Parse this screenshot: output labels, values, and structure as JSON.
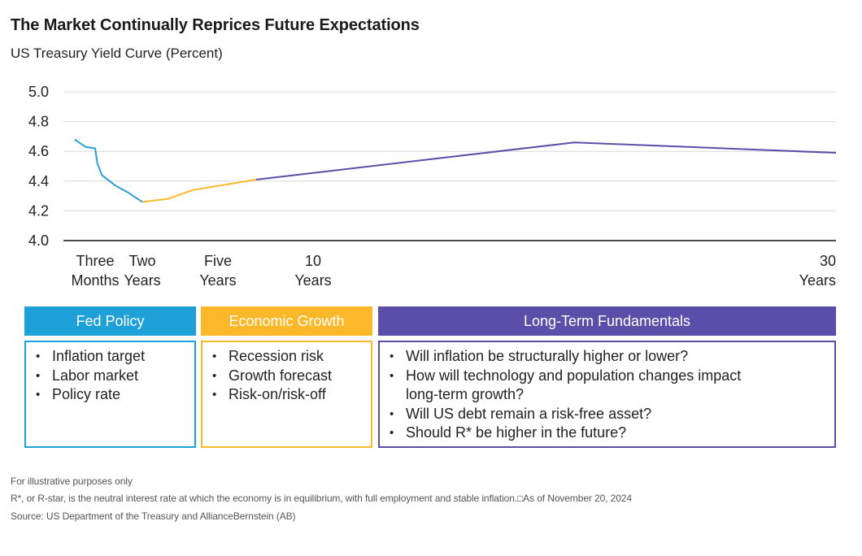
{
  "title": "The Market Continually Reprices Future Expectations",
  "subtitle": "US Treasury Yield Curve (Percent)",
  "chart_data": {
    "type": "line",
    "title": "The Market Continually Reprices Future Expectations",
    "subtitle": "US Treasury Yield Curve (Percent)",
    "ylim": [
      4.0,
      5.0
    ],
    "yticks": [
      "5.0",
      "4.8",
      "4.6",
      "4.4",
      "4.2",
      "4.0"
    ],
    "xlim": [
      0,
      30
    ],
    "x_ticks": [
      {
        "value": 0.25,
        "lines": [
          "Three",
          "Months"
        ]
      },
      {
        "value": 2,
        "lines": [
          "Two",
          "Years"
        ]
      },
      {
        "value": 5,
        "lines": [
          "Five",
          "Years"
        ]
      },
      {
        "value": 10,
        "lines": [
          "10",
          "Years"
        ]
      },
      {
        "value": 30,
        "lines": [
          "30",
          "Years"
        ]
      }
    ],
    "grid": true,
    "series": [
      {
        "color": "#2b9fd6",
        "points": [
          [
            0.08,
            4.68
          ],
          [
            0.17,
            4.63
          ],
          [
            0.25,
            4.62
          ],
          [
            0.33,
            4.52
          ],
          [
            0.5,
            4.44
          ],
          [
            1,
            4.37
          ],
          [
            1.5,
            4.32
          ],
          [
            2,
            4.26
          ]
        ]
      },
      {
        "color": "#fbb829",
        "points": [
          [
            2,
            4.26
          ],
          [
            3,
            4.28
          ],
          [
            4,
            4.34
          ],
          [
            7,
            4.41
          ]
        ]
      },
      {
        "color": "#5b4ea8",
        "points": [
          [
            7,
            4.41
          ],
          [
            20,
            4.66
          ],
          [
            30,
            4.59
          ]
        ]
      }
    ]
  },
  "boxes": [
    {
      "heading": "Fed Policy",
      "color": "#1ea0d9",
      "items": [
        "Inflation target",
        "Labor market",
        "Policy rate"
      ]
    },
    {
      "heading": "Economic Growth",
      "color": "#fbb829",
      "items": [
        "Recession risk",
        "Growth forecast",
        "Risk-on/risk-off"
      ]
    },
    {
      "heading": "Long-Term Fundamentals",
      "color": "#5b4ea8",
      "items": [
        "Will inflation be structurally higher or lower?",
        "How will technology and population changes impact long-term growth?",
        "Will US debt remain a risk-free asset?",
        "Should R* be higher in the future?"
      ]
    }
  ],
  "footnotes": {
    "line1": "For illustrative purposes only",
    "line2": "R*, or R-star, is the neutral interest rate at which the economy is in equilibrium, with full employment and stable inflation.□As of November 20, 2024",
    "line3": "Source: US Department of the Treasury and AllianceBernstein (AB)"
  }
}
